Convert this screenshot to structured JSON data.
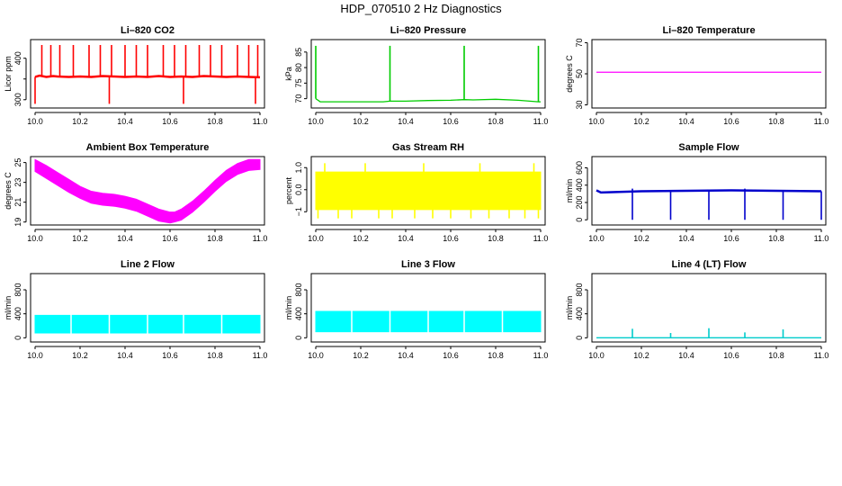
{
  "title": "HDP_070510  2 Hz Diagnostics",
  "chart_data": [
    {
      "id": "co2",
      "type": "line",
      "title": "Li–820 CO2",
      "ylabel": "Licor ppm",
      "color": "#ff0000",
      "xlim": [
        9.98,
        11.02
      ],
      "ylim": [
        280,
        445
      ],
      "xticks": [
        10.0,
        10.2,
        10.4,
        10.6,
        10.8,
        11.0
      ],
      "xtick_labels": [
        "10.0",
        "10.2",
        "10.4",
        "10.6",
        "10.8",
        "11.0"
      ],
      "yticks": [
        300,
        350,
        400
      ],
      "ytick_labels": [
        "300",
        "",
        "400"
      ],
      "series": [
        {
          "x": [
            10.0,
            10.02,
            10.05,
            10.08,
            10.1,
            10.15,
            10.2,
            10.25,
            10.3,
            10.35,
            10.4,
            10.45,
            10.5,
            10.55,
            10.6,
            10.65,
            10.7,
            10.75,
            10.8,
            10.85,
            10.9,
            10.95,
            11.0
          ],
          "y": [
            355,
            358,
            355,
            357,
            356,
            355,
            356,
            355,
            357,
            356,
            355,
            356,
            355,
            357,
            355,
            356,
            355,
            357,
            356,
            355,
            356,
            355,
            354
          ]
        }
      ],
      "spike_up": [
        10.03,
        10.07,
        10.11,
        10.17,
        10.24,
        10.29,
        10.34,
        10.4,
        10.45,
        10.5,
        10.57,
        10.62,
        10.67,
        10.73,
        10.78,
        10.83,
        10.9,
        10.95,
        10.99
      ],
      "spike_up_value": 432,
      "spike_down": [
        10.0,
        10.33,
        10.66,
        10.98
      ],
      "spike_down_value": 290
    },
    {
      "id": "pressure",
      "type": "line",
      "title": "Li–820 Pressure",
      "ylabel": "kPa",
      "color": "#00cc00",
      "xlim": [
        9.98,
        11.02
      ],
      "ylim": [
        67,
        89
      ],
      "xticks": [
        10.0,
        10.2,
        10.4,
        10.6,
        10.8,
        11.0
      ],
      "xtick_labels": [
        "10.0",
        "10.2",
        "10.4",
        "10.6",
        "10.8",
        "11.0"
      ],
      "yticks": [
        70,
        75,
        80,
        85
      ],
      "ytick_labels": [
        "70",
        "75",
        "80",
        "85"
      ],
      "series": [
        {
          "x": [
            10.0,
            10.02,
            10.1,
            10.2,
            10.3,
            10.33,
            10.4,
            10.5,
            10.6,
            10.66,
            10.7,
            10.8,
            10.9,
            10.99,
            11.0
          ],
          "y": [
            70,
            69,
            69,
            69,
            69,
            69.2,
            69.2,
            69.4,
            69.5,
            69.7,
            69.6,
            69.8,
            69.5,
            69,
            69
          ]
        }
      ],
      "spike_up": [
        10.0,
        10.33,
        10.66,
        10.99
      ],
      "spike_up_value": 87
    },
    {
      "id": "temperature",
      "type": "line",
      "title": "Li–820 Temperature",
      "ylabel": "degrees C",
      "color": "#ff00ff",
      "xlim": [
        9.98,
        11.02
      ],
      "ylim": [
        28,
        72
      ],
      "xticks": [
        10.0,
        10.2,
        10.4,
        10.6,
        10.8,
        11.0
      ],
      "xtick_labels": [
        "10.0",
        "10.2",
        "10.4",
        "10.6",
        "10.8",
        "11.0"
      ],
      "yticks": [
        30,
        50,
        70
      ],
      "ytick_labels": [
        "30",
        "50",
        "70"
      ],
      "series": [
        {
          "x": [
            10.0,
            11.0
          ],
          "y": [
            51,
            51
          ]
        }
      ]
    },
    {
      "id": "box-temp",
      "type": "area",
      "title": "Ambient Box Temperature",
      "ylabel": "degrees C",
      "color": "#ff00ff",
      "xlim": [
        9.98,
        11.02
      ],
      "ylim": [
        18.7,
        25.6
      ],
      "xticks": [
        10.0,
        10.2,
        10.4,
        10.6,
        10.8,
        11.0
      ],
      "xtick_labels": [
        "10.0",
        "10.2",
        "10.4",
        "10.6",
        "10.8",
        "11.0"
      ],
      "yticks": [
        19,
        21,
        23,
        25
      ],
      "ytick_labels": [
        "19",
        "21",
        "23",
        "25"
      ],
      "x": [
        10.0,
        10.05,
        10.1,
        10.15,
        10.2,
        10.25,
        10.3,
        10.35,
        10.4,
        10.45,
        10.5,
        10.55,
        10.6,
        10.62,
        10.65,
        10.7,
        10.75,
        10.8,
        10.85,
        10.9,
        10.95,
        11.0
      ],
      "y_low": [
        24.1,
        23.4,
        22.7,
        22.0,
        21.4,
        20.9,
        20.7,
        20.6,
        20.4,
        20.1,
        19.6,
        19.1,
        18.9,
        19.0,
        19.2,
        20.0,
        21.0,
        22.1,
        23.1,
        23.8,
        24.2,
        24.3
      ],
      "y_high": [
        25.3,
        24.7,
        24.0,
        23.3,
        22.6,
        22.1,
        21.9,
        21.8,
        21.6,
        21.3,
        20.8,
        20.3,
        20.0,
        20.0,
        20.3,
        21.1,
        22.1,
        23.2,
        24.2,
        24.9,
        25.3,
        25.3
      ]
    },
    {
      "id": "rh",
      "type": "area",
      "title": "Gas Stream RH",
      "ylabel": "percent",
      "color": "#ffff00",
      "xlim": [
        9.98,
        11.02
      ],
      "ylim": [
        -1.6,
        1.5
      ],
      "xticks": [
        10.0,
        10.2,
        10.4,
        10.6,
        10.8,
        11.0
      ],
      "xtick_labels": [
        "10.0",
        "10.2",
        "10.4",
        "10.6",
        "10.8",
        "11.0"
      ],
      "yticks": [
        -1.0,
        0.0,
        1.0
      ],
      "ytick_labels": [
        "−1",
        "0.0",
        "1.0"
      ],
      "x": [
        10.0,
        11.0
      ],
      "y_low": [
        -0.9,
        -0.9
      ],
      "y_high": [
        0.8,
        0.8
      ],
      "spike_down": [
        10.01,
        10.1,
        10.16,
        10.28,
        10.34,
        10.44,
        10.52,
        10.6,
        10.69,
        10.77,
        10.86,
        10.93,
        10.99
      ],
      "spike_down_value": -1.3,
      "spike_up": [
        10.04,
        10.22,
        10.48,
        10.73,
        10.97
      ],
      "spike_up_value": 1.2
    },
    {
      "id": "sample-flow",
      "type": "line",
      "title": "Sample Flow",
      "ylabel": "ml/min",
      "color": "#0000cc",
      "xlim": [
        9.98,
        11.02
      ],
      "ylim": [
        -60,
        730
      ],
      "xticks": [
        10.0,
        10.2,
        10.4,
        10.6,
        10.8,
        11.0
      ],
      "xtick_labels": [
        "10.0",
        "10.2",
        "10.4",
        "10.6",
        "10.8",
        "11.0"
      ],
      "yticks": [
        0,
        200,
        400,
        600
      ],
      "ytick_labels": [
        "0",
        "200",
        "400",
        "600"
      ],
      "series": [
        {
          "x": [
            10.0,
            10.02,
            10.2,
            10.4,
            10.6,
            10.8,
            11.0
          ],
          "y": [
            340,
            315,
            330,
            335,
            340,
            335,
            330
          ]
        }
      ],
      "spike_down": [
        10.16,
        10.33,
        10.5,
        10.66,
        10.83,
        11.0
      ],
      "spike_down_value": 0,
      "spike_up": [
        10.16,
        10.66
      ],
      "spike_up_value": 360
    },
    {
      "id": "line2",
      "type": "area",
      "title": "Line 2 Flow",
      "ylabel": "ml/min",
      "color": "#00ffff",
      "xlim": [
        9.98,
        11.02
      ],
      "ylim": [
        -70,
        1070
      ],
      "xticks": [
        10.0,
        10.2,
        10.4,
        10.6,
        10.8,
        11.0
      ],
      "xtick_labels": [
        "10.0",
        "10.2",
        "10.4",
        "10.6",
        "10.8",
        "11.0"
      ],
      "yticks": [
        0,
        400,
        800
      ],
      "ytick_labels": [
        "0",
        "400",
        "800"
      ],
      "x": [
        10.0,
        11.0
      ],
      "y_low": [
        80,
        80
      ],
      "y_high": [
        375,
        375
      ],
      "gaps": [
        10.16,
        10.33,
        10.5,
        10.66,
        10.83
      ]
    },
    {
      "id": "line3",
      "type": "area",
      "title": "Line 3 Flow",
      "ylabel": "ml/min",
      "color": "#00ffff",
      "xlim": [
        9.98,
        11.02
      ],
      "ylim": [
        -70,
        1070
      ],
      "xticks": [
        10.0,
        10.2,
        10.4,
        10.6,
        10.8,
        11.0
      ],
      "xtick_labels": [
        "10.0",
        "10.2",
        "10.4",
        "10.6",
        "10.8",
        "11.0"
      ],
      "yticks": [
        0,
        400,
        800
      ],
      "ytick_labels": [
        "0",
        "400",
        "800"
      ],
      "x": [
        10.0,
        11.0
      ],
      "y_low": [
        100,
        100
      ],
      "y_high": [
        440,
        440
      ],
      "gaps": [
        10.16,
        10.33,
        10.5,
        10.66,
        10.83
      ]
    },
    {
      "id": "line4",
      "type": "line",
      "title": "Line 4 (LT) Flow",
      "ylabel": "ml/min",
      "color": "#00cccc",
      "xlim": [
        9.98,
        11.02
      ],
      "ylim": [
        -70,
        1070
      ],
      "xticks": [
        10.0,
        10.2,
        10.4,
        10.6,
        10.8,
        11.0
      ],
      "xtick_labels": [
        "10.0",
        "10.2",
        "10.4",
        "10.6",
        "10.8",
        "11.0"
      ],
      "yticks": [
        0,
        400,
        800
      ],
      "ytick_labels": [
        "0",
        "400",
        "800"
      ],
      "series": [
        {
          "x": [
            10.0,
            11.0
          ],
          "y": [
            0,
            0
          ]
        }
      ],
      "spike_up": [
        10.16,
        10.33,
        10.5,
        10.66,
        10.83
      ],
      "spike_up_values": [
        150,
        80,
        160,
        90,
        140
      ]
    }
  ]
}
